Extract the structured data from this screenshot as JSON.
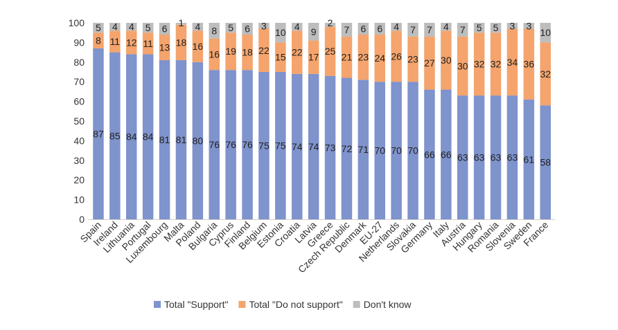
{
  "chart_data": {
    "type": "bar",
    "stacked": true,
    "categories": [
      "Spain",
      "Ireland",
      "Lithuania",
      "Portugal",
      "Luxembourg",
      "Malta",
      "Poland",
      "Bulgaria",
      "Cyprus",
      "Finland",
      "Belgium",
      "Estonia",
      "Croatia",
      "Latvia",
      "Greece",
      "Czech Republic",
      "Denmark",
      "EU-27",
      "Netherlands",
      "Slovakia",
      "Germany",
      "Italy",
      "Austria",
      "Hungary",
      "Romania",
      "Slovenia",
      "Sweden",
      "France"
    ],
    "series": [
      {
        "name": "Total \"Support\"",
        "color": "#7f93cc",
        "values": [
          87,
          85,
          84,
          84,
          81,
          81,
          80,
          76,
          76,
          76,
          75,
          75,
          74,
          74,
          73,
          72,
          71,
          70,
          70,
          70,
          66,
          66,
          63,
          63,
          63,
          63,
          61,
          58
        ]
      },
      {
        "name": "Total \"Do not support\"",
        "color": "#f4a46c",
        "values": [
          8,
          11,
          12,
          11,
          13,
          18,
          16,
          16,
          19,
          18,
          22,
          15,
          22,
          17,
          25,
          21,
          23,
          24,
          26,
          23,
          27,
          30,
          30,
          32,
          32,
          34,
          36,
          32
        ]
      },
      {
        "name": "Don't know",
        "color": "#bdbdbd",
        "values": [
          5,
          4,
          4,
          5,
          6,
          1,
          4,
          8,
          5,
          6,
          3,
          10,
          4,
          9,
          2,
          7,
          6,
          6,
          4,
          7,
          7,
          4,
          7,
          5,
          5,
          3,
          3,
          10
        ]
      }
    ],
    "yticks": [
      "0",
      "10",
      "20",
      "30",
      "40",
      "50",
      "60",
      "70",
      "80",
      "90",
      "100"
    ],
    "ylim": [
      0,
      100
    ],
    "grid": false,
    "legend_position": "bottom"
  }
}
